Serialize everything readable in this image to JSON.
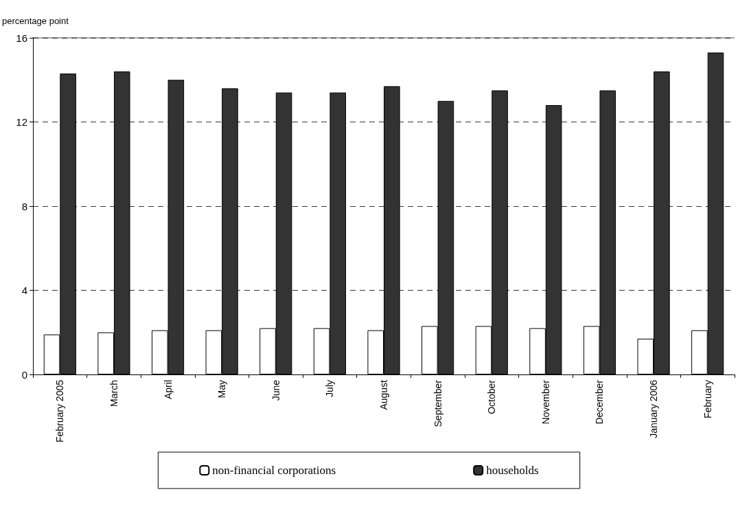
{
  "chart_data": {
    "type": "bar",
    "ylabel": "percentage point",
    "categories": [
      "February 2005",
      "March",
      "April",
      "May",
      "June",
      "July",
      "August",
      "September",
      "October",
      "November",
      "December",
      "January 2006",
      "February"
    ],
    "series": [
      {
        "name": "non-financial corporations",
        "color": "#ffffff",
        "values": [
          1.9,
          2.0,
          2.1,
          2.1,
          2.2,
          2.2,
          2.1,
          2.3,
          2.3,
          2.2,
          2.3,
          1.7,
          2.1
        ]
      },
      {
        "name": "households",
        "color": "#333333",
        "values": [
          14.3,
          14.4,
          14.0,
          13.6,
          13.4,
          13.4,
          13.7,
          13.0,
          13.5,
          12.8,
          13.5,
          14.4,
          15.3
        ]
      }
    ],
    "ylim": [
      0,
      16
    ],
    "yticks": [
      0,
      4,
      8,
      12,
      16
    ],
    "grid": "y",
    "legend": "bottom"
  }
}
